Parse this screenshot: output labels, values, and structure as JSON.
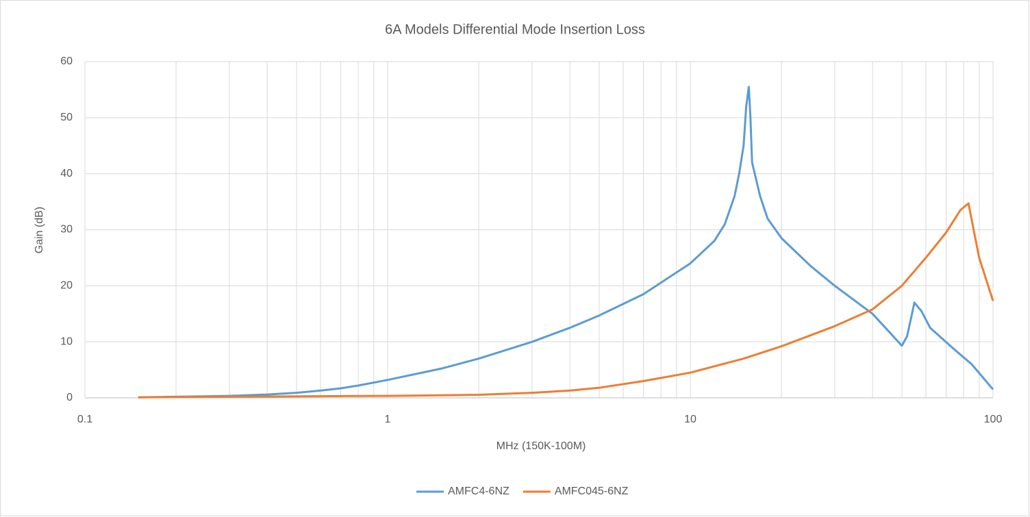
{
  "chart_data": {
    "type": "line",
    "title": "6A Models Differential Mode Insertion Loss",
    "x_label": "MHz (150K-100M)",
    "y_label": "Gain (dB)",
    "xscale": "log",
    "xlim": [
      0.1,
      100
    ],
    "xticks": [
      0.1,
      1,
      10,
      100
    ],
    "xminorticks": [
      0.2,
      0.3,
      0.4,
      0.5,
      0.6,
      0.7,
      0.8,
      0.9,
      2,
      3,
      4,
      5,
      6,
      7,
      8,
      9,
      20,
      30,
      40,
      50,
      60,
      70,
      80,
      90
    ],
    "ylim": [
      0,
      60
    ],
    "yticks": [
      0,
      10,
      20,
      30,
      40,
      50,
      60
    ],
    "grid": true,
    "legend": "bottom",
    "series": [
      {
        "name": "AMFC4-6NZ",
        "color": "#5b9bd5",
        "x": [
          0.15,
          0.2,
          0.3,
          0.4,
          0.5,
          0.6,
          0.7,
          0.8,
          1,
          1.5,
          2,
          3,
          4,
          5,
          7,
          10,
          12,
          13,
          14,
          14.5,
          15,
          15.3,
          15.6,
          15.8,
          16,
          17,
          18,
          20,
          25,
          30,
          40,
          45,
          50,
          52,
          54,
          55,
          58,
          62,
          75,
          85,
          100
        ],
        "values": [
          0.1,
          0.2,
          0.35,
          0.6,
          0.9,
          1.3,
          1.7,
          2.2,
          3.2,
          5.2,
          7,
          10,
          12.5,
          14.7,
          18.5,
          24,
          28,
          31,
          36,
          40,
          45,
          52,
          55.5,
          50,
          42,
          36,
          32,
          28.5,
          23.5,
          20,
          15,
          12,
          9.3,
          11,
          15,
          17,
          15.5,
          12.5,
          8.5,
          6,
          1.5
        ]
      },
      {
        "name": "AMFC045-6NZ",
        "color": "#ed7d31",
        "x": [
          0.15,
          0.3,
          1,
          1.5,
          2,
          3,
          4,
          5,
          7,
          10,
          15,
          20,
          30,
          40,
          50,
          60,
          70,
          78,
          83,
          87,
          90,
          100
        ],
        "values": [
          0.1,
          0.2,
          0.35,
          0.45,
          0.55,
          0.9,
          1.3,
          1.8,
          3,
          4.5,
          7,
          9.2,
          12.8,
          15.8,
          20,
          25,
          29.5,
          33.5,
          34.7,
          29,
          25,
          17.3
        ]
      }
    ]
  }
}
